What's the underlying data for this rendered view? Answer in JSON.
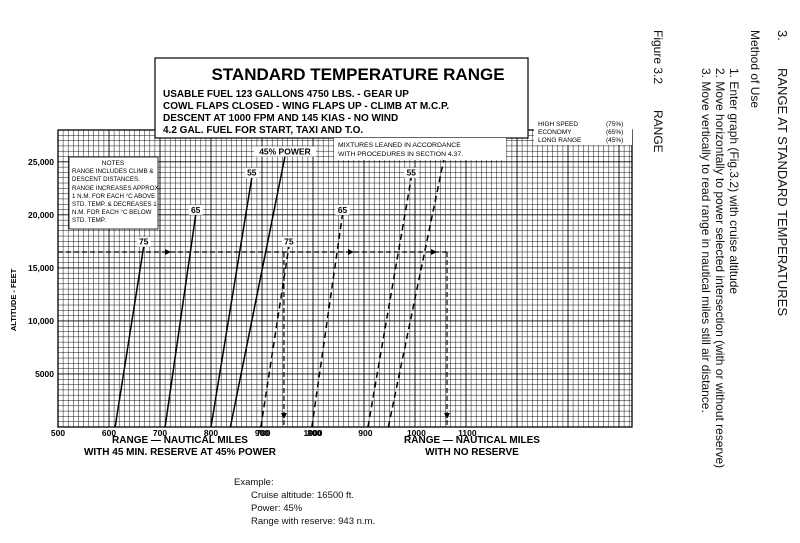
{
  "side_text": {
    "section_number": "3.",
    "section_title": "RANGE AT STANDARD TEMPERATURES",
    "method_heading": "Method of Use",
    "steps": [
      "1.  Enter graph (Fig.3.2) with cruise altitude",
      "2.  Move horizontally to power selected intersection (with or without reserve)",
      "3.  Move vertically to read range in nautical miles still air distance."
    ],
    "figure_label": "Figure 3.2",
    "figure_title": "RANGE"
  },
  "title_box": {
    "title": "STANDARD TEMPERATURE RANGE",
    "lines": [
      "USABLE FUEL 123 GALLONS 4750 LBS. - GEAR UP",
      "COWL FLAPS CLOSED - WING FLAPS UP - CLIMB AT M.C.P.",
      "DESCENT AT 1000 FPM AND 145 KIAS - NO WIND",
      "4.2 GAL. FUEL FOR START, TAXI AND T.O."
    ]
  },
  "power_settings": [
    {
      "label": "HIGH SPEED",
      "value": "(75%)"
    },
    {
      "label": "ECONOMY",
      "value": "(65%)"
    },
    {
      "label": "LONG RANGE",
      "value": "(45%)"
    }
  ],
  "mixture_note": [
    "MIXTURES LEANED IN ACCORDANCE",
    "WITH PROCEDURES IN SECTION 4.37."
  ],
  "notes_box": {
    "heading": "NOTES",
    "lines": [
      "RANGE INCLUDES CLIMB &",
      "DESCENT DISTANCES.",
      "RANGE INCREASES APPROX.",
      "1 N.M. FOR EACH °C ABOVE",
      "STD. TEMP. & DECREASES 1",
      "N.M. FOR EACH °C BELOW",
      "STD. TEMP."
    ]
  },
  "example": {
    "heading": "Example:",
    "lines": [
      "Cruise altitude: 16500 ft.",
      "Power: 45%",
      "Range with reserve: 943 n.m."
    ]
  },
  "chart_data": {
    "type": "line",
    "ylabel": "ALTITUDE - FEET",
    "ylim": [
      0,
      28000
    ],
    "y_ticks": [
      5000,
      10000,
      15000,
      20000,
      25000
    ],
    "y_tick_labels": [
      "5000",
      "10,000",
      "15,000",
      "20,000",
      "25,000"
    ],
    "grid": true,
    "panels": [
      {
        "xlabel": [
          "RANGE — NAUTICAL MILES",
          "WITH 45 MIN. RESERVE AT 45% POWER"
        ],
        "xlim": [
          500,
          1050
        ],
        "x_ticks": [
          500,
          600,
          700,
          800,
          900,
          1000
        ],
        "line_style": "solid",
        "series": [
          {
            "name": "75",
            "points": [
              [
                612,
                0
              ],
              [
                668,
                17000
              ]
            ]
          },
          {
            "name": "65",
            "points": [
              [
                710,
                0
              ],
              [
                770,
                20000
              ]
            ]
          },
          {
            "name": "55",
            "points": [
              [
                800,
                0
              ],
              [
                880,
                23500
              ]
            ]
          },
          {
            "name": "45% POWER",
            "points": [
              [
                838,
                0
              ],
              [
                945,
                25500
              ]
            ]
          }
        ]
      },
      {
        "xlabel": [
          "RANGE — NAUTICAL MILES",
          "WITH NO RESERVE"
        ],
        "xlim": [
          600,
          1150
        ],
        "x_ticks": [
          700,
          800,
          900,
          1000,
          1100
        ],
        "line_style": "dashed",
        "series": [
          {
            "name": "75",
            "points": [
              [
                695,
                0
              ],
              [
                750,
                17000
              ]
            ]
          },
          {
            "name": "65",
            "points": [
              [
                795,
                0
              ],
              [
                855,
                20000
              ]
            ]
          },
          {
            "name": "55",
            "points": [
              [
                905,
                0
              ],
              [
                990,
                23500
              ]
            ]
          },
          {
            "name": "45% POWER",
            "points": [
              [
                945,
                0
              ],
              [
                1055,
                25500
              ]
            ]
          }
        ]
      }
    ],
    "example_path": {
      "altitude": 16500,
      "start_x": 500,
      "read_range": 943,
      "read_range_no_reserve": 1060
    }
  }
}
